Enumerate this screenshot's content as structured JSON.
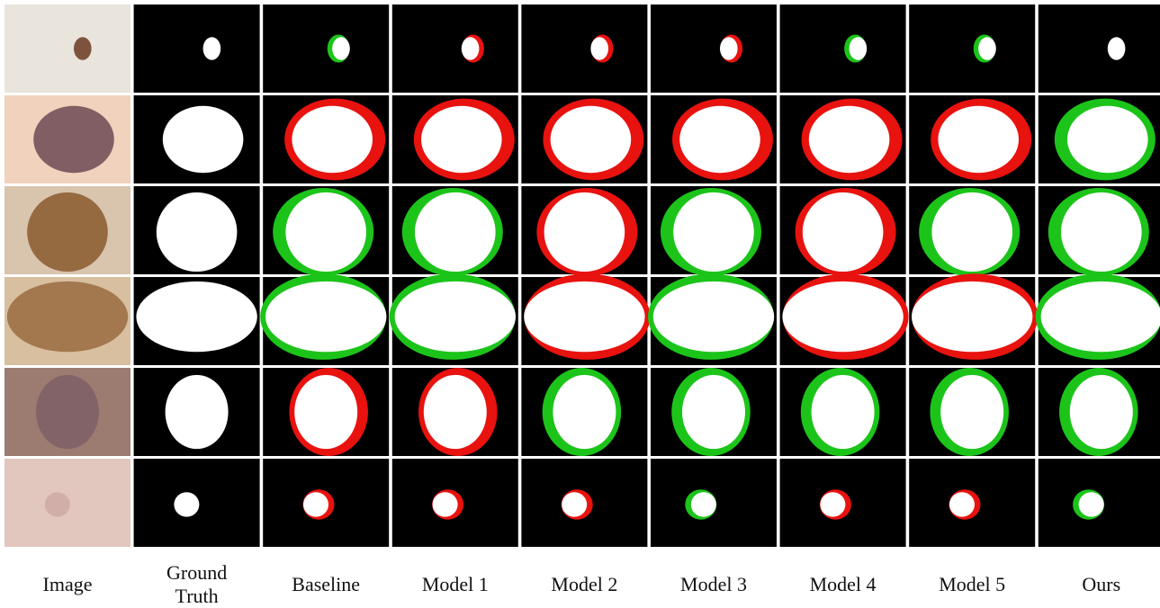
{
  "columns": [
    "Image",
    "Ground Truth",
    "Baseline",
    "Model 1",
    "Model 2",
    "Model 3",
    "Model 4",
    "Model 5",
    "Ours"
  ]
}
